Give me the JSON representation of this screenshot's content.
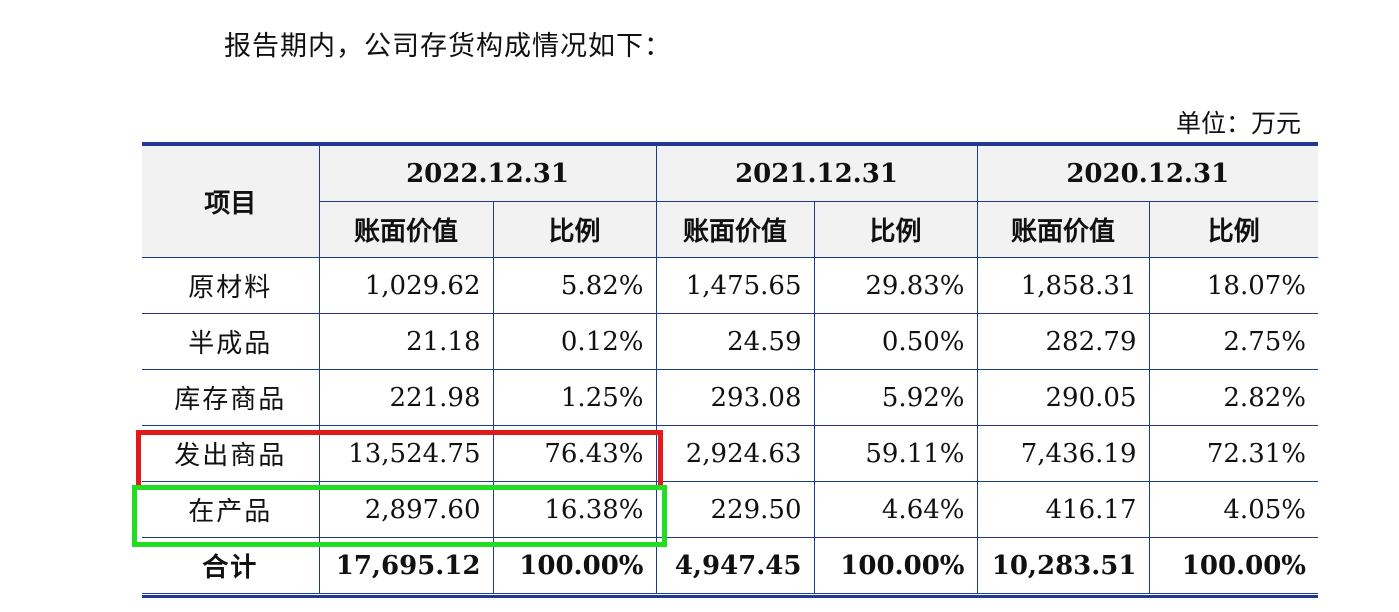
{
  "intro": "报告期内，公司存货构成情况如下：",
  "unit": "单位：万元",
  "table": {
    "item_header": "项目",
    "periods": [
      "2022.12.31",
      "2021.12.31",
      "2020.12.31"
    ],
    "sub_headers": [
      "账面价值",
      "比例"
    ],
    "rows": [
      {
        "item": "原材料",
        "cells": [
          "1,029.62",
          "5.82%",
          "1,475.65",
          "29.83%",
          "1,858.31",
          "18.07%"
        ]
      },
      {
        "item": "半成品",
        "cells": [
          "21.18",
          "0.12%",
          "24.59",
          "0.50%",
          "282.79",
          "2.75%"
        ]
      },
      {
        "item": "库存商品",
        "cells": [
          "221.98",
          "1.25%",
          "293.08",
          "5.92%",
          "290.05",
          "2.82%"
        ]
      },
      {
        "item": "发出商品",
        "cells": [
          "13,524.75",
          "76.43%",
          "2,924.63",
          "59.11%",
          "7,436.19",
          "72.31%"
        ]
      },
      {
        "item": "在产品",
        "cells": [
          "2,897.60",
          "16.38%",
          "229.50",
          "4.64%",
          "416.17",
          "4.05%"
        ]
      },
      {
        "item": "合计",
        "cells": [
          "17,695.12",
          "100.00%",
          "4,947.45",
          "100.00%",
          "10,283.51",
          "100.00%"
        ]
      }
    ]
  },
  "highlights": {
    "red_color": "#e11b1b",
    "green_color": "#22dd22"
  }
}
